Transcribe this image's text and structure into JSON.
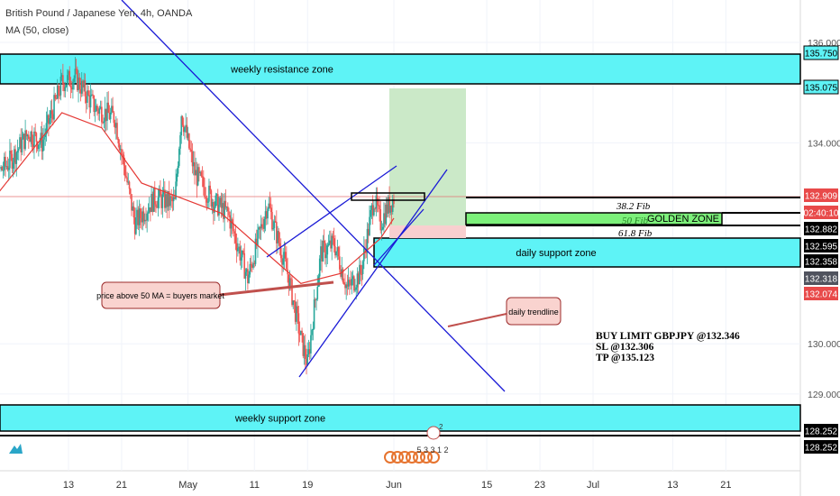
{
  "header": {
    "title": "British Pound / Japanese Yen, 4h, OANDA",
    "indicator": "MA (50, close)"
  },
  "chart_data": {
    "type": "candlestick",
    "symbol": "GBPJPY",
    "timeframe": "4h",
    "ylim": [
      128.2,
      136.4
    ],
    "price_ticks": [
      136.0,
      134.0,
      130.0,
      129.0
    ],
    "price_tick_labels": [
      "136.000",
      "134.000",
      "130.000",
      "129.000"
    ],
    "x_tick_labels": [
      "13",
      "21",
      "May",
      "11",
      "19",
      "Jun",
      "15",
      "23",
      "Jul",
      "13",
      "21"
    ],
    "x_tick_days": [
      13,
      21,
      31,
      41,
      49,
      62,
      76,
      84,
      92,
      104,
      112
    ],
    "ohlc_anchor_closes": [
      [
        0,
        133.1
      ],
      [
        4,
        133.6
      ],
      [
        7,
        134.2
      ],
      [
        9,
        134.0
      ],
      [
        12,
        135.2
      ],
      [
        14,
        135.3
      ],
      [
        17,
        134.7
      ],
      [
        20,
        134.5
      ],
      [
        23,
        132.4
      ],
      [
        26,
        132.9
      ],
      [
        29,
        132.8
      ],
      [
        30,
        134.6
      ],
      [
        32,
        133.4
      ],
      [
        35,
        132.8
      ],
      [
        37,
        132.6
      ],
      [
        40,
        131.3
      ],
      [
        43,
        132.8
      ],
      [
        46,
        131.4
      ],
      [
        48,
        130.1
      ],
      [
        49,
        129.6
      ],
      [
        51,
        131.8
      ],
      [
        53,
        132.0
      ],
      [
        55,
        131.1
      ],
      [
        57,
        131.4
      ],
      [
        59,
        132.9
      ],
      [
        60,
        132.4
      ],
      [
        61,
        132.7
      ],
      [
        62,
        132.9
      ]
    ],
    "moving_average": {
      "period": 50,
      "values": [
        [
          0,
          132.6
        ],
        [
          6,
          133.6
        ],
        [
          12,
          134.6
        ],
        [
          18,
          134.3
        ],
        [
          24,
          133.2
        ],
        [
          30,
          132.9
        ],
        [
          36,
          132.6
        ],
        [
          42,
          131.9
        ],
        [
          48,
          131.2
        ],
        [
          54,
          131.4
        ],
        [
          60,
          132.1
        ],
        [
          62,
          132.5
        ]
      ]
    },
    "zones": [
      {
        "name": "weekly resistance zone",
        "top": 135.75,
        "bottom": 135.075
      },
      {
        "name": "daily support zone",
        "top": 132.595,
        "bottom": 132.358
      },
      {
        "name": "weekly support zone",
        "top": 128.78,
        "bottom": 128.33
      }
    ],
    "fib_levels": [
      {
        "label": "38.2 Fib",
        "price": 132.909
      },
      {
        "label": "50 Fib",
        "price": 132.74
      },
      {
        "label": "61.8 Fib",
        "price": 132.882
      }
    ],
    "golden_zone_label": "GOLDEN ZONE",
    "position": {
      "entry": 132.346,
      "stop": 132.306,
      "target": 135.123
    },
    "price_labels": [
      {
        "text": "135.750",
        "color": "#000000",
        "bg": "#000000"
      },
      {
        "text": "135.075",
        "color": "#000000",
        "bg": "#000000"
      },
      {
        "text": "132.909",
        "color": "#ffffff",
        "bg": "#e84a4a"
      },
      {
        "text": "02:40:10",
        "color": "#ffffff",
        "bg": "#e84a4a"
      },
      {
        "text": "132.882",
        "color": "#ffffff",
        "bg": "#000000"
      },
      {
        "text": "132.595",
        "color": "#ffffff",
        "bg": "#000000"
      },
      {
        "text": "132.358",
        "color": "#ffffff",
        "bg": "#000000"
      },
      {
        "text": "132.318",
        "color": "#ffffff",
        "bg": "#50535e"
      },
      {
        "text": "132.074",
        "color": "#ffffff",
        "bg": "#e84a4a"
      },
      {
        "text": "128.252",
        "color": "#ffffff",
        "bg": "#000000"
      },
      {
        "text": "128.252",
        "color": "#ffffff",
        "bg": "#000000"
      }
    ],
    "annotations": {
      "ma_note": "price above 50 MA = buyers market",
      "trend_note": "daily trendline",
      "trade_line1": "BUY LIMIT GBPJPY @132.346",
      "trade_line2": "SL @132.306",
      "trade_line3": "TP @135.123",
      "event_marks": "5 3 3 1 2"
    },
    "colors": {
      "up": "#26a69a",
      "down": "#ef5350",
      "zone_fill": "#5ef3f6",
      "ma": "#e53935",
      "trendline": "#1a1ad6",
      "target_fill": "#cbe9c8",
      "stop_fill": "#f8cfcf",
      "golden_fill": "#7cf07a"
    }
  }
}
